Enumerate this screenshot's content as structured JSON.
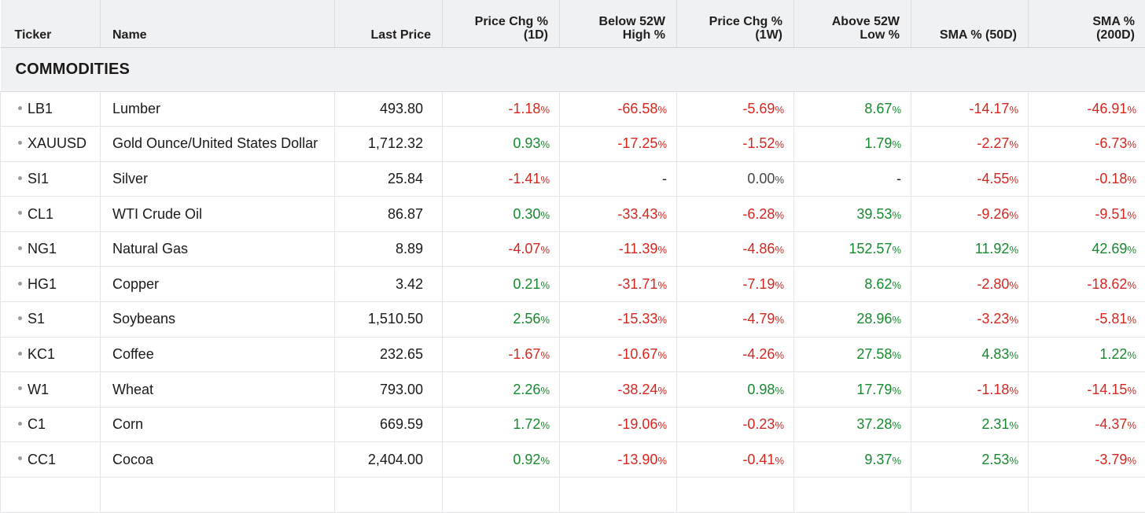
{
  "columns": {
    "ticker": "Ticker",
    "name": "Name",
    "last_price": "Last Price",
    "chg_1d": "Price Chg %\n(1D)",
    "below_52w": "Below 52W\nHigh %",
    "chg_1w": "Price Chg %\n(1W)",
    "above_52w": "Above 52W\nLow %",
    "sma_50": "SMA % (50D)",
    "sma_200": "SMA %\n(200D)"
  },
  "group": {
    "label": "COMMODITIES"
  },
  "colors": {
    "negative": "#d7261e",
    "positive": "#168a2e",
    "neutral": "#444444"
  },
  "rows": [
    {
      "ticker": "LB1",
      "name": "Lumber",
      "price": "493.80",
      "chg_1d": "-1.18",
      "below_52w": "-66.58",
      "chg_1w": "-5.69",
      "above_52w": "8.67",
      "sma_50": "-14.17",
      "sma_200": "-46.91"
    },
    {
      "ticker": "XAUUSD",
      "name": "Gold Ounce/United States Dollar",
      "price": "1,712.32",
      "chg_1d": "0.93",
      "below_52w": "-17.25",
      "chg_1w": "-1.52",
      "above_52w": "1.79",
      "sma_50": "-2.27",
      "sma_200": "-6.73"
    },
    {
      "ticker": "SI1",
      "name": "Silver",
      "price": "25.84",
      "chg_1d": "-1.41",
      "below_52w": "-",
      "chg_1w": "0.00",
      "above_52w": "-",
      "sma_50": "-4.55",
      "sma_200": "-0.18"
    },
    {
      "ticker": "CL1",
      "name": "WTI Crude Oil",
      "price": "86.87",
      "chg_1d": "0.30",
      "below_52w": "-33.43",
      "chg_1w": "-6.28",
      "above_52w": "39.53",
      "sma_50": "-9.26",
      "sma_200": "-9.51"
    },
    {
      "ticker": "NG1",
      "name": "Natural Gas",
      "price": "8.89",
      "chg_1d": "-4.07",
      "below_52w": "-11.39",
      "chg_1w": "-4.86",
      "above_52w": "152.57",
      "sma_50": "11.92",
      "sma_200": "42.69"
    },
    {
      "ticker": "HG1",
      "name": "Copper",
      "price": "3.42",
      "chg_1d": "0.21",
      "below_52w": "-31.71",
      "chg_1w": "-7.19",
      "above_52w": "8.62",
      "sma_50": "-2.80",
      "sma_200": "-18.62"
    },
    {
      "ticker": "S1",
      "name": "Soybeans",
      "price": "1,510.50",
      "chg_1d": "2.56",
      "below_52w": "-15.33",
      "chg_1w": "-4.79",
      "above_52w": "28.96",
      "sma_50": "-3.23",
      "sma_200": "-5.81"
    },
    {
      "ticker": "KC1",
      "name": "Coffee",
      "price": "232.65",
      "chg_1d": "-1.67",
      "below_52w": "-10.67",
      "chg_1w": "-4.26",
      "above_52w": "27.58",
      "sma_50": "4.83",
      "sma_200": "1.22"
    },
    {
      "ticker": "W1",
      "name": "Wheat",
      "price": "793.00",
      "chg_1d": "2.26",
      "below_52w": "-38.24",
      "chg_1w": "0.98",
      "above_52w": "17.79",
      "sma_50": "-1.18",
      "sma_200": "-14.15"
    },
    {
      "ticker": "C1",
      "name": "Corn",
      "price": "669.59",
      "chg_1d": "1.72",
      "below_52w": "-19.06",
      "chg_1w": "-0.23",
      "above_52w": "37.28",
      "sma_50": "2.31",
      "sma_200": "-4.37"
    },
    {
      "ticker": "CC1",
      "name": "Cocoa",
      "price": "2,404.00",
      "chg_1d": "0.92",
      "below_52w": "-13.90",
      "chg_1w": "-0.41",
      "above_52w": "9.37",
      "sma_50": "2.53",
      "sma_200": "-3.79"
    },
    {
      "ticker": "",
      "name": "",
      "price": "",
      "chg_1d": "",
      "below_52w": "",
      "chg_1w": "",
      "above_52w": "",
      "sma_50": "",
      "sma_200": ""
    }
  ]
}
